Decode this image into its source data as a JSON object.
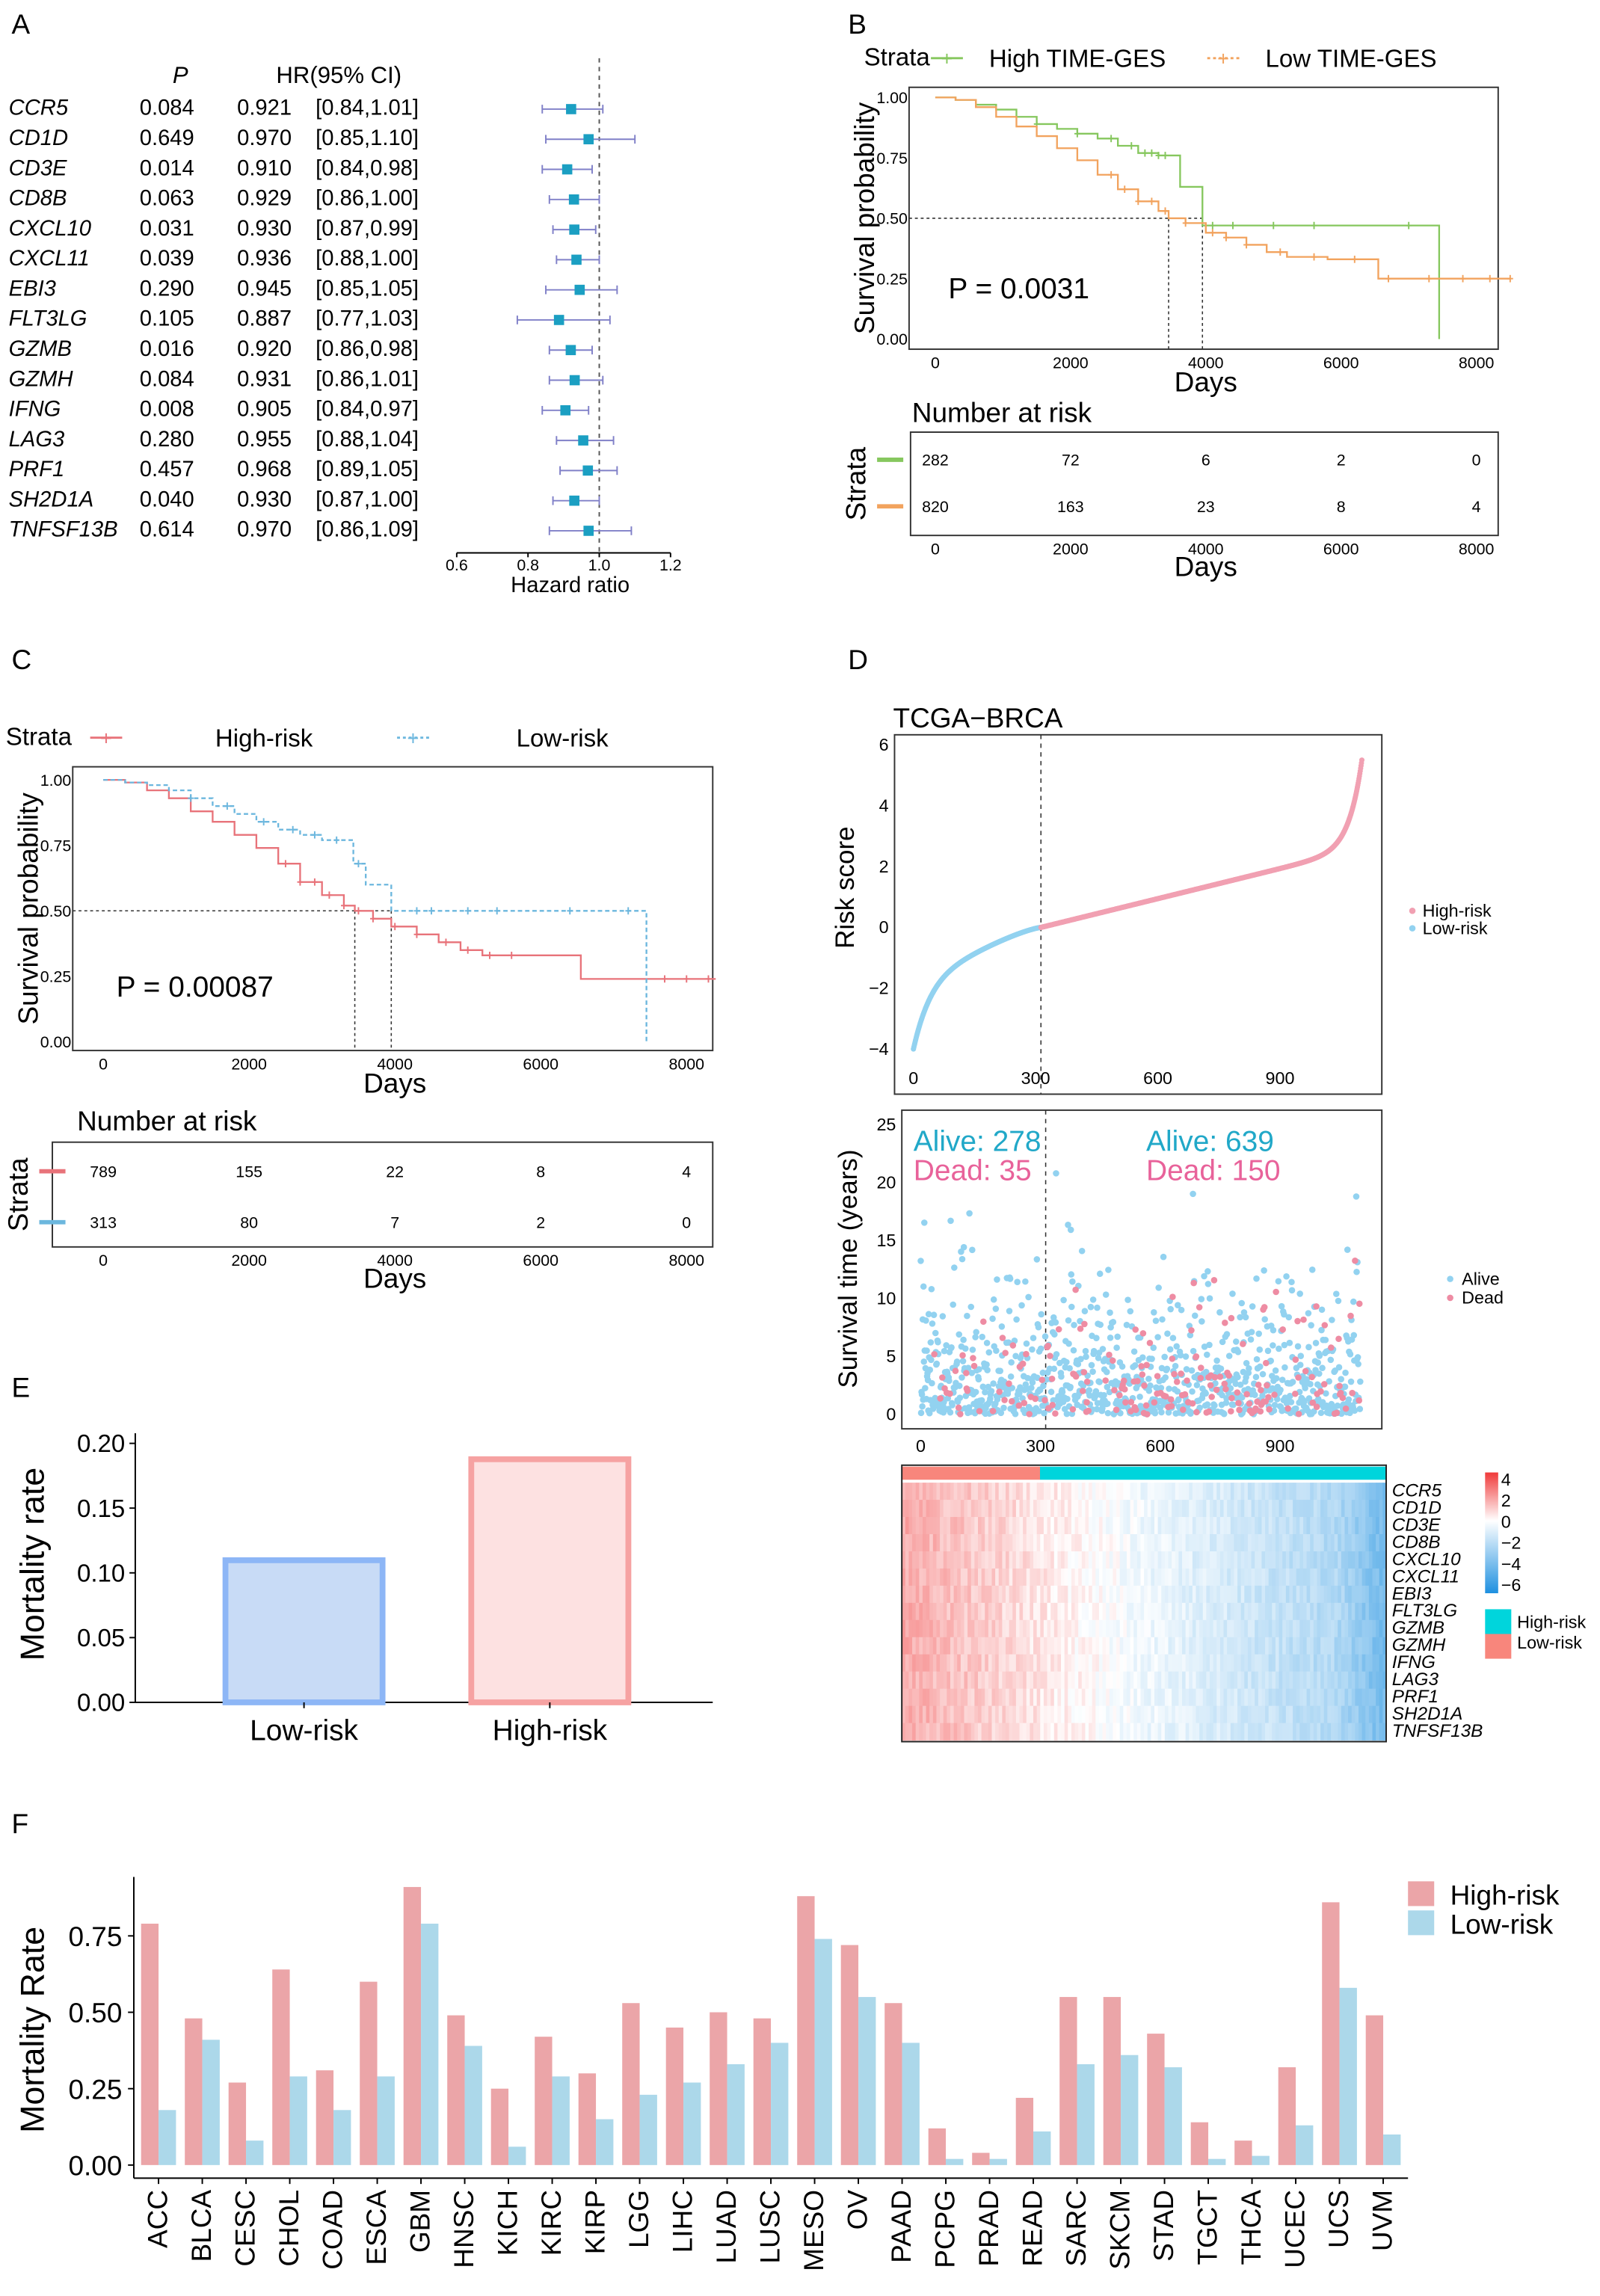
{
  "panel_labels": [
    "A",
    "B",
    "C",
    "D",
    "E",
    "F"
  ],
  "chart_data": [
    {
      "id": "A",
      "type": "forest",
      "header_p": "P",
      "header_hr": "HR(95% CI)",
      "rows": [
        {
          "gene": "CCR5",
          "p": "0.084",
          "hr": "0.921",
          "ci": "[0.84,1.01]",
          "hr_value": 0.921,
          "low": 0.84,
          "high": 1.01
        },
        {
          "gene": "CD1D",
          "p": "0.649",
          "hr": "0.970",
          "ci": "[0.85,1.10]",
          "hr_value": 0.97,
          "low": 0.85,
          "high": 1.1
        },
        {
          "gene": "CD3E",
          "p": "0.014",
          "hr": "0.910",
          "ci": "[0.84,0.98]",
          "hr_value": 0.91,
          "low": 0.84,
          "high": 0.98
        },
        {
          "gene": "CD8B",
          "p": "0.063",
          "hr": "0.929",
          "ci": "[0.86,1.00]",
          "hr_value": 0.929,
          "low": 0.86,
          "high": 1.0
        },
        {
          "gene": "CXCL10",
          "p": "0.031",
          "hr": "0.930",
          "ci": "[0.87,0.99]",
          "hr_value": 0.93,
          "low": 0.87,
          "high": 0.99
        },
        {
          "gene": "CXCL11",
          "p": "0.039",
          "hr": "0.936",
          "ci": "[0.88,1.00]",
          "hr_value": 0.936,
          "low": 0.88,
          "high": 1.0
        },
        {
          "gene": "EBI3",
          "p": "0.290",
          "hr": "0.945",
          "ci": "[0.85,1.05]",
          "hr_value": 0.945,
          "low": 0.85,
          "high": 1.05
        },
        {
          "gene": "FLT3LG",
          "p": "0.105",
          "hr": "0.887",
          "ci": "[0.77,1.03]",
          "hr_value": 0.887,
          "low": 0.77,
          "high": 1.03
        },
        {
          "gene": "GZMB",
          "p": "0.016",
          "hr": "0.920",
          "ci": "[0.86,0.98]",
          "hr_value": 0.92,
          "low": 0.86,
          "high": 0.98
        },
        {
          "gene": "GZMH",
          "p": "0.084",
          "hr": "0.931",
          "ci": "[0.86,1.01]",
          "hr_value": 0.931,
          "low": 0.86,
          "high": 1.01
        },
        {
          "gene": "IFNG",
          "p": "0.008",
          "hr": "0.905",
          "ci": "[0.84,0.97]",
          "hr_value": 0.905,
          "low": 0.84,
          "high": 0.97
        },
        {
          "gene": "LAG3",
          "p": "0.280",
          "hr": "0.955",
          "ci": "[0.88,1.04]",
          "hr_value": 0.955,
          "low": 0.88,
          "high": 1.04
        },
        {
          "gene": "PRF1",
          "p": "0.457",
          "hr": "0.968",
          "ci": "[0.89,1.05]",
          "hr_value": 0.968,
          "low": 0.89,
          "high": 1.05
        },
        {
          "gene": "SH2D1A",
          "p": "0.040",
          "hr": "0.930",
          "ci": "[0.87,1.00]",
          "hr_value": 0.93,
          "low": 0.87,
          "high": 1.0
        },
        {
          "gene": "TNFSF13B",
          "p": "0.614",
          "hr": "0.970",
          "ci": "[0.86,1.09]",
          "hr_value": 0.97,
          "low": 0.86,
          "high": 1.09
        }
      ],
      "xticks": [
        "0.6",
        "0.8",
        "1.0",
        "1.2"
      ],
      "xtick_values": [
        0.6,
        0.8,
        1.0,
        1.2
      ],
      "xlim": [
        0.6,
        1.2
      ],
      "reference": 1.0,
      "xlabel": "Hazard ratio",
      "colors": {
        "point": "#1b9fc2",
        "ci": "#8080c8"
      }
    },
    {
      "id": "B",
      "type": "line",
      "subtype": "kaplan-meier",
      "legend_title": "Strata",
      "series": [
        {
          "name": "High TIME-GES",
          "color": "#86c75e",
          "end": 7450,
          "points": [
            [
              0,
              1
            ],
            [
              300,
              0.99
            ],
            [
              600,
              0.97
            ],
            [
              900,
              0.95
            ],
            [
              1200,
              0.92
            ],
            [
              1500,
              0.89
            ],
            [
              1800,
              0.87
            ],
            [
              2100,
              0.85
            ],
            [
              2400,
              0.83
            ],
            [
              2700,
              0.8
            ],
            [
              3000,
              0.77
            ],
            [
              3300,
              0.76
            ],
            [
              3620,
              0.63
            ],
            [
              3950,
              0.47
            ],
            [
              7450,
              0
            ]
          ],
          "censor": [
            1500,
            2100,
            2600,
            2900,
            3100,
            3200,
            3300,
            3400,
            4100,
            4400,
            5000,
            5600,
            7000
          ]
        },
        {
          "name": "Low TIME-GES",
          "color": "#f2a35e",
          "end": 8500,
          "points": [
            [
              0,
              1
            ],
            [
              300,
              0.99
            ],
            [
              600,
              0.96
            ],
            [
              900,
              0.92
            ],
            [
              1200,
              0.88
            ],
            [
              1500,
              0.84
            ],
            [
              1800,
              0.79
            ],
            [
              2100,
              0.74
            ],
            [
              2400,
              0.68
            ],
            [
              2700,
              0.62
            ],
            [
              3000,
              0.57
            ],
            [
              3300,
              0.53
            ],
            [
              3450,
              0.5
            ],
            [
              3700,
              0.48
            ],
            [
              4000,
              0.44
            ],
            [
              4300,
              0.42
            ],
            [
              4600,
              0.39
            ],
            [
              4900,
              0.36
            ],
            [
              5200,
              0.34
            ],
            [
              5800,
              0.33
            ],
            [
              6550,
              0.25
            ]
          ],
          "censor": [
            2600,
            2800,
            3000,
            3200,
            3400,
            3700,
            4100,
            4300,
            4600,
            5100,
            5600,
            6200,
            6700,
            7300,
            7800,
            8200,
            8500
          ]
        }
      ],
      "median_days": [
        3450,
        3950
      ],
      "pvalue": "P = 0.0031",
      "xlabel": "Days",
      "ylabel": "Survival probability",
      "xticks": [
        0,
        2000,
        4000,
        6000,
        8000
      ],
      "xlim": [
        0,
        8500
      ],
      "yticks": [
        "0.00",
        "0.25",
        "0.50",
        "0.75",
        "1.00"
      ],
      "ylim": [
        0,
        1
      ],
      "risk_table": {
        "title": "Number at risk",
        "ylabel": "Strata",
        "times": [
          0,
          2000,
          4000,
          6000,
          8000
        ],
        "rows": [
          [
            282,
            72,
            6,
            2,
            0
          ],
          [
            820,
            163,
            23,
            8,
            4
          ]
        ],
        "xlabel": "Days"
      }
    },
    {
      "id": "C",
      "type": "line",
      "subtype": "kaplan-meier",
      "legend_title": "Strata",
      "series": [
        {
          "name": "High-risk",
          "color": "#e8737a",
          "end": 8400,
          "points": [
            [
              0,
              1
            ],
            [
              300,
              0.99
            ],
            [
              600,
              0.96
            ],
            [
              900,
              0.93
            ],
            [
              1200,
              0.88
            ],
            [
              1500,
              0.84
            ],
            [
              1800,
              0.79
            ],
            [
              2100,
              0.74
            ],
            [
              2400,
              0.68
            ],
            [
              2700,
              0.61
            ],
            [
              3000,
              0.56
            ],
            [
              3300,
              0.52
            ],
            [
              3450,
              0.5
            ],
            [
              3700,
              0.47
            ],
            [
              3950,
              0.44
            ],
            [
              4300,
              0.41
            ],
            [
              4600,
              0.38
            ],
            [
              4900,
              0.35
            ],
            [
              5200,
              0.33
            ],
            [
              6550,
              0.24
            ]
          ],
          "censor": [
            2500,
            2700,
            2900,
            3100,
            3300,
            3500,
            3700,
            4000,
            4300,
            4700,
            5000,
            5300,
            5600,
            7700,
            8000,
            8300
          ]
        },
        {
          "name": "Low-risk",
          "color": "#6cb7de",
          "end": 7450,
          "points": [
            [
              0,
              1
            ],
            [
              300,
              0.99
            ],
            [
              600,
              0.98
            ],
            [
              900,
              0.96
            ],
            [
              1200,
              0.93
            ],
            [
              1500,
              0.9
            ],
            [
              1800,
              0.87
            ],
            [
              2100,
              0.84
            ],
            [
              2400,
              0.81
            ],
            [
              2700,
              0.79
            ],
            [
              3000,
              0.77
            ],
            [
              3430,
              0.68
            ],
            [
              3600,
              0.6
            ],
            [
              3950,
              0.5
            ],
            [
              7450,
              0
            ]
          ],
          "censor": [
            1200,
            1700,
            2200,
            2600,
            2900,
            3200,
            3500,
            4300,
            4500,
            5000,
            5400,
            6400,
            7200
          ]
        }
      ],
      "median_days": [
        3450,
        3950
      ],
      "pvalue": "P = 0.00087",
      "xlabel": "Days",
      "ylabel": "Survival probability",
      "xticks": [
        0,
        2000,
        4000,
        6000,
        8000
      ],
      "xlim": [
        0,
        8400
      ],
      "yticks": [
        "0.00",
        "0.25",
        "0.50",
        "0.75",
        "1.00"
      ],
      "ylim": [
        0,
        1
      ],
      "risk_table": {
        "title": "Number at risk",
        "ylabel": "Strata",
        "times": [
          0,
          2000,
          4000,
          6000,
          8000
        ],
        "rows": [
          [
            789,
            155,
            22,
            8,
            4
          ],
          [
            313,
            80,
            7,
            2,
            0
          ]
        ],
        "xlabel": "Days"
      }
    },
    {
      "id": "D1",
      "type": "scatter",
      "title": "TCGA−BRCA",
      "ylabel": "Risk score",
      "n_patients": 1102,
      "cutoff_rank": 313,
      "score_range": [
        -4,
        5.6
      ],
      "xticks": [
        0,
        300,
        600,
        900
      ],
      "yticks": [
        "−4",
        "−2",
        "0",
        "2",
        "4",
        "6"
      ],
      "ytick_values": [
        -4,
        -2,
        0,
        2,
        4,
        6
      ],
      "ylim": [
        -4.3,
        6
      ],
      "legend": [
        {
          "label": "High-risk",
          "color": "#f1a0b2"
        },
        {
          "label": "Low-risk",
          "color": "#92d2f0"
        }
      ]
    },
    {
      "id": "D2",
      "type": "scatter",
      "ylabel": "Survival time (years)",
      "xticks": [
        0,
        300,
        600,
        900
      ],
      "yticks": [
        0,
        5,
        10,
        15,
        20,
        25
      ],
      "ylim": [
        0,
        25
      ],
      "annotations": [
        {
          "alive": "Alive: 278",
          "dead": "Dead: 35"
        },
        {
          "alive": "Alive: 639",
          "dead": "Dead: 150"
        }
      ],
      "group_counts": {
        "low_alive": 278,
        "low_dead": 35,
        "high_alive": 639,
        "high_dead": 150
      },
      "legend": [
        {
          "label": "Alive",
          "color": "#92d2f0"
        },
        {
          "label": "Dead",
          "color": "#ee8ca3"
        }
      ],
      "annotation_colors": {
        "alive": "#21a8c8",
        "dead": "#e8629a"
      }
    },
    {
      "id": "D3",
      "type": "heatmap",
      "genes": [
        "CCR5",
        "CD1D",
        "CD3E",
        "CD8B",
        "CXCL10",
        "CXCL11",
        "EBI3",
        "FLT3LG",
        "GZMB",
        "GZMH",
        "IFNG",
        "LAG3",
        "PRF1",
        "SH2D1A",
        "TNFSF13B"
      ],
      "colorbar_ticks": [
        "4",
        "2",
        "0",
        "−2",
        "−4",
        "−6"
      ],
      "color_low": "#1e90e0",
      "color_mid": "#ffffff",
      "color_high": "#f03a3a",
      "annotation_legend": [
        {
          "label": "High-risk",
          "color": "#00d5dc"
        },
        {
          "label": "Low-risk",
          "color": "#f8867c"
        }
      ]
    },
    {
      "id": "E",
      "type": "bar",
      "categories": [
        "Low-risk",
        "High-risk"
      ],
      "values": [
        0.112,
        0.19
      ],
      "ylabel": "Mortality rate",
      "yticks": [
        "0.00",
        "0.05",
        "0.10",
        "0.15",
        "0.20"
      ],
      "ylim": [
        0,
        0.2
      ],
      "fill": [
        "#c8dbf6",
        "#fde1e1"
      ],
      "stroke": [
        "#8db6f6",
        "#f6a2a2"
      ]
    },
    {
      "id": "F",
      "type": "bar",
      "categories": [
        "ACC",
        "BLCA",
        "CESC",
        "CHOL",
        "COAD",
        "ESCA",
        "GBM",
        "HNSC",
        "KICH",
        "KIRC",
        "KIRP",
        "LGG",
        "LIHC",
        "LUAD",
        "LUSC",
        "MESO",
        "OV",
        "PAAD",
        "PCPG",
        "PRAD",
        "READ",
        "SARC",
        "SKCM",
        "STAD",
        "TGCT",
        "THCA",
        "UCEC",
        "UCS",
        "UVM"
      ],
      "series": [
        {
          "name": "High-risk",
          "color": "#eba5a8",
          "values": [
            0.79,
            0.48,
            0.27,
            0.64,
            0.31,
            0.6,
            0.91,
            0.49,
            0.25,
            0.42,
            0.3,
            0.53,
            0.45,
            0.5,
            0.48,
            0.88,
            0.72,
            0.53,
            0.12,
            0.04,
            0.22,
            0.55,
            0.55,
            0.43,
            0.14,
            0.08,
            0.32,
            0.86,
            0.49
          ]
        },
        {
          "name": "Low-risk",
          "color": "#acd8ea",
          "values": [
            0.18,
            0.41,
            0.08,
            0.29,
            0.18,
            0.29,
            0.79,
            0.39,
            0.06,
            0.29,
            0.15,
            0.23,
            0.27,
            0.33,
            0.4,
            0.74,
            0.55,
            0.4,
            0.02,
            0.02,
            0.11,
            0.33,
            0.36,
            0.32,
            0.02,
            0.03,
            0.13,
            0.58,
            0.1
          ]
        }
      ],
      "ylabel": "Mortality Rate",
      "yticks": [
        "0.00",
        "0.25",
        "0.50",
        "0.75"
      ],
      "ylim": [
        0,
        0.95
      ],
      "legend_position": "top-right"
    }
  ]
}
